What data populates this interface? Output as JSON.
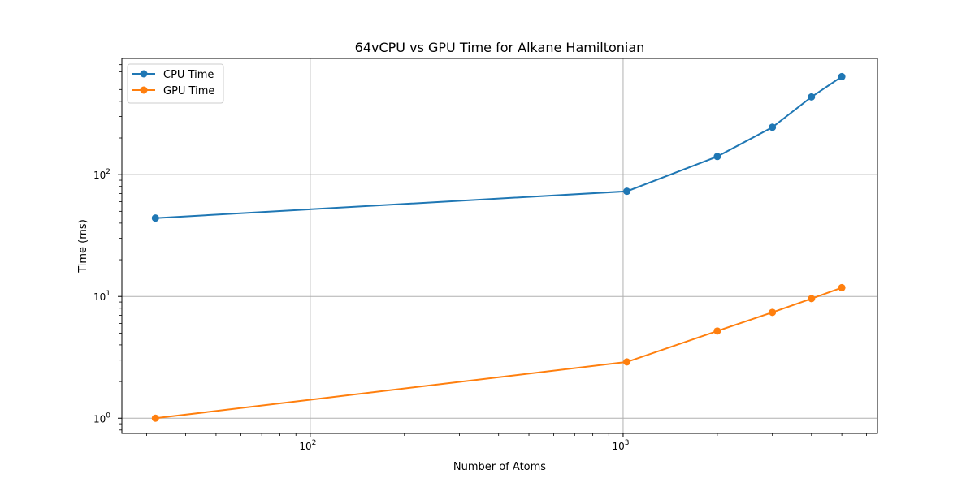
{
  "chart_data": {
    "type": "line",
    "title": "64vCPU vs GPU Time for Alkane Hamiltonian",
    "xlabel": "Number of Atoms",
    "ylabel": "Time (ms)",
    "xscale": "log",
    "yscale": "log",
    "xlim": [
      25,
      6500
    ],
    "ylim": [
      0.75,
      900
    ],
    "grid": "major",
    "legend_position": "top-left",
    "x": [
      32,
      1028,
      2000,
      3000,
      4000,
      5000
    ],
    "series": [
      {
        "name": "CPU Time",
        "color": "#1f77b4",
        "values": [
          44,
          73,
          141,
          245,
          435,
          638
        ]
      },
      {
        "name": "GPU Time",
        "color": "#ff7f0e",
        "values": [
          1.0,
          2.9,
          5.2,
          7.4,
          9.6,
          11.8
        ]
      }
    ],
    "x_ticks": [
      {
        "value": 100,
        "base": "10",
        "exp": "2"
      },
      {
        "value": 1000,
        "base": "10",
        "exp": "3"
      }
    ],
    "y_ticks": [
      {
        "value": 1,
        "base": "10",
        "exp": "0"
      },
      {
        "value": 10,
        "base": "10",
        "exp": "1"
      },
      {
        "value": 100,
        "base": "10",
        "exp": "2"
      }
    ]
  }
}
